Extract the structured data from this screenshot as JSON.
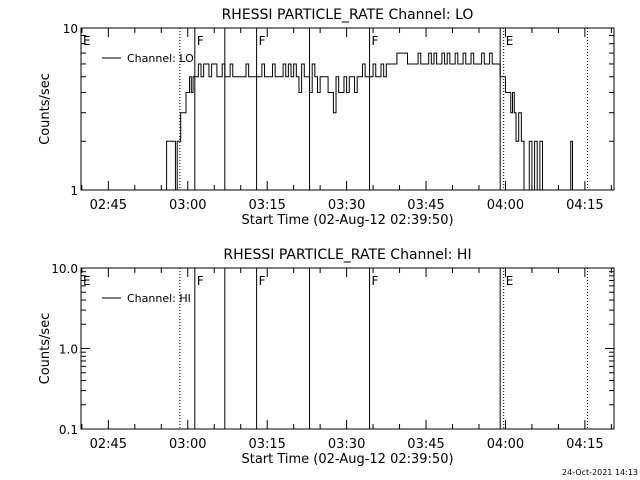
{
  "footer_date": "24-Oct-2021 14:13",
  "colors": {
    "background": "#ffffff",
    "foreground": "#000000"
  },
  "chart_data": [
    {
      "type": "line",
      "title": "RHESSI PARTICLE_RATE Channel: LO",
      "xlabel": "Start Time (02-Aug-12 02:39:50)",
      "ylabel": "Counts/sec",
      "yscale": "log",
      "ylim": [
        1,
        10
      ],
      "xlim": [
        "02:39:50",
        "04:20:30"
      ],
      "grid": false,
      "legend_position": "top-left",
      "x_ticks": [
        "02:45",
        "03:00",
        "03:15",
        "03:30",
        "03:45",
        "04:00",
        "04:15"
      ],
      "y_ticks": [
        "1",
        "10"
      ],
      "series": [
        {
          "name": "Channel: LO",
          "style": "step",
          "points": [
            [
              "02:55:30",
              1
            ],
            [
              "02:56:00",
              2
            ],
            [
              "02:57:40",
              1
            ],
            [
              "02:58:00",
              2
            ],
            [
              "02:58:20",
              2
            ],
            [
              "02:58:40",
              3
            ],
            [
              "02:59:10",
              3
            ],
            [
              "02:59:40",
              4
            ],
            [
              "03:00:00",
              4
            ],
            [
              "03:00:20",
              5
            ],
            [
              "03:00:40",
              4
            ],
            [
              "03:01:00",
              5
            ],
            [
              "03:01:30",
              5
            ],
            [
              "03:02:00",
              6
            ],
            [
              "03:02:30",
              5
            ],
            [
              "03:03:00",
              6
            ],
            [
              "03:03:30",
              6
            ],
            [
              "03:04:00",
              5
            ],
            [
              "03:04:30",
              6
            ],
            [
              "03:05:00",
              6
            ],
            [
              "03:05:30",
              5
            ],
            [
              "03:06:00",
              5
            ],
            [
              "03:06:30",
              6
            ],
            [
              "03:07:00",
              5
            ],
            [
              "03:07:30",
              5
            ],
            [
              "03:08:00",
              6
            ],
            [
              "03:08:30",
              5
            ],
            [
              "03:09:00",
              5
            ],
            [
              "03:09:30",
              5
            ],
            [
              "03:10:00",
              5
            ],
            [
              "03:10:30",
              5
            ],
            [
              "03:11:00",
              6
            ],
            [
              "03:11:30",
              5
            ],
            [
              "03:12:00",
              5
            ],
            [
              "03:12:30",
              5
            ],
            [
              "03:13:00",
              5
            ],
            [
              "03:13:30",
              5
            ],
            [
              "03:14:00",
              6
            ],
            [
              "03:14:30",
              5
            ],
            [
              "03:15:00",
              5
            ],
            [
              "03:15:30",
              5
            ],
            [
              "03:16:00",
              6
            ],
            [
              "03:16:30",
              5
            ],
            [
              "03:17:00",
              5
            ],
            [
              "03:17:30",
              5
            ],
            [
              "03:18:00",
              6
            ],
            [
              "03:18:30",
              5
            ],
            [
              "03:19:00",
              6
            ],
            [
              "03:19:30",
              5
            ],
            [
              "03:20:00",
              6
            ],
            [
              "03:20:30",
              5
            ],
            [
              "03:21:00",
              4
            ],
            [
              "03:21:30",
              6
            ],
            [
              "03:22:00",
              5
            ],
            [
              "03:22:30",
              5
            ],
            [
              "03:23:00",
              4
            ],
            [
              "03:23:30",
              6
            ],
            [
              "03:24:00",
              5
            ],
            [
              "03:24:30",
              4
            ],
            [
              "03:25:00",
              5
            ],
            [
              "03:25:30",
              5
            ],
            [
              "03:26:00",
              5
            ],
            [
              "03:26:30",
              4
            ],
            [
              "03:27:00",
              4
            ],
            [
              "03:27:30",
              3
            ],
            [
              "03:28:00",
              5
            ],
            [
              "03:28:30",
              4
            ],
            [
              "03:29:00",
              4
            ],
            [
              "03:29:30",
              5
            ],
            [
              "03:30:00",
              4
            ],
            [
              "03:30:30",
              5
            ],
            [
              "03:31:00",
              5
            ],
            [
              "03:31:30",
              4
            ],
            [
              "03:32:00",
              5
            ],
            [
              "03:32:30",
              5
            ],
            [
              "03:33:00",
              6
            ],
            [
              "03:33:30",
              5
            ],
            [
              "03:34:00",
              5
            ],
            [
              "03:34:30",
              5
            ],
            [
              "03:35:00",
              6
            ],
            [
              "03:35:30",
              5
            ],
            [
              "03:36:00",
              5
            ],
            [
              "03:36:30",
              6
            ],
            [
              "03:37:00",
              5
            ],
            [
              "03:37:30",
              6
            ],
            [
              "03:38:00",
              6
            ],
            [
              "03:38:30",
              6
            ],
            [
              "03:39:00",
              6
            ],
            [
              "03:39:30",
              7
            ],
            [
              "03:40:00",
              7
            ],
            [
              "03:40:30",
              7
            ],
            [
              "03:41:00",
              7
            ],
            [
              "03:41:30",
              6
            ],
            [
              "03:42:00",
              6
            ],
            [
              "03:42:30",
              6
            ],
            [
              "03:43:00",
              6
            ],
            [
              "03:43:30",
              7
            ],
            [
              "03:44:00",
              6
            ],
            [
              "03:44:30",
              6
            ],
            [
              "03:45:00",
              6
            ],
            [
              "03:45:30",
              7
            ],
            [
              "03:46:00",
              6
            ],
            [
              "03:46:30",
              7
            ],
            [
              "03:47:00",
              6
            ],
            [
              "03:47:30",
              6
            ],
            [
              "03:48:00",
              7
            ],
            [
              "03:48:30",
              6
            ],
            [
              "03:49:00",
              7
            ],
            [
              "03:49:30",
              6
            ],
            [
              "03:50:00",
              6
            ],
            [
              "03:50:30",
              7
            ],
            [
              "03:51:00",
              6
            ],
            [
              "03:51:30",
              6
            ],
            [
              "03:52:00",
              7
            ],
            [
              "03:52:30",
              6
            ],
            [
              "03:53:00",
              6
            ],
            [
              "03:53:30",
              7
            ],
            [
              "03:54:00",
              6
            ],
            [
              "03:54:30",
              6
            ],
            [
              "03:55:00",
              6
            ],
            [
              "03:55:30",
              7
            ],
            [
              "03:56:00",
              6
            ],
            [
              "03:56:30",
              6
            ],
            [
              "03:57:00",
              7
            ],
            [
              "03:57:30",
              6
            ],
            [
              "03:58:00",
              6
            ],
            [
              "03:58:30",
              6
            ],
            [
              "03:59:00",
              5
            ],
            [
              "03:59:30",
              5
            ],
            [
              "04:00:00",
              4
            ],
            [
              "04:00:30",
              4
            ],
            [
              "04:01:00",
              3
            ],
            [
              "04:01:20",
              4
            ],
            [
              "04:01:40",
              3
            ],
            [
              "04:02:00",
              2
            ],
            [
              "04:02:30",
              3
            ],
            [
              "04:03:00",
              2
            ],
            [
              "04:03:30",
              1
            ],
            [
              "04:04:00",
              1
            ],
            [
              "04:04:30",
              2
            ],
            [
              "04:05:00",
              1
            ],
            [
              "04:05:30",
              2
            ],
            [
              "04:06:00",
              1
            ],
            [
              "04:06:30",
              2
            ],
            [
              "04:07:00",
              1
            ],
            [
              "04:07:30",
              1
            ],
            [
              "04:08:00",
              1
            ],
            [
              "04:12:00",
              1
            ],
            [
              "04:12:20",
              2
            ],
            [
              "04:12:40",
              1
            ]
          ]
        }
      ],
      "solid_lines": [
        "03:01:20",
        "03:07:00",
        "03:13:00",
        "03:23:00",
        "03:34:20",
        "03:59:00"
      ],
      "dotted_lines": [
        "02:58:30",
        "03:59:40",
        "04:15:30"
      ],
      "annotations": [
        {
          "text": "E",
          "x": "02:39:50"
        },
        {
          "text": "F",
          "x": "03:01:20"
        },
        {
          "text": "F",
          "x": "03:13:00"
        },
        {
          "text": "F",
          "x": "03:34:20"
        },
        {
          "text": "E",
          "x": "03:59:40"
        }
      ]
    },
    {
      "type": "line",
      "title": "RHESSI PARTICLE_RATE Channel: HI",
      "xlabel": "Start Time (02-Aug-12 02:39:50)",
      "ylabel": "Counts/sec",
      "yscale": "log",
      "ylim": [
        0.1,
        10
      ],
      "xlim": [
        "02:39:50",
        "04:20:30"
      ],
      "grid": false,
      "legend_position": "top-left",
      "x_ticks": [
        "02:45",
        "03:00",
        "03:15",
        "03:30",
        "03:45",
        "04:00",
        "04:15"
      ],
      "y_ticks": [
        "0.1",
        "1.0",
        "10.0"
      ],
      "series": [
        {
          "name": "Channel: HI",
          "style": "step",
          "points": []
        }
      ],
      "solid_lines": [
        "03:01:20",
        "03:07:00",
        "03:13:00",
        "03:23:00",
        "03:34:20",
        "03:59:00"
      ],
      "dotted_lines": [
        "02:58:30",
        "03:59:40",
        "04:15:30"
      ],
      "annotations": [
        {
          "text": "E",
          "x": "02:39:50"
        },
        {
          "text": "F",
          "x": "03:01:20"
        },
        {
          "text": "F",
          "x": "03:13:00"
        },
        {
          "text": "F",
          "x": "03:34:20"
        },
        {
          "text": "E",
          "x": "03:59:40"
        }
      ]
    }
  ]
}
